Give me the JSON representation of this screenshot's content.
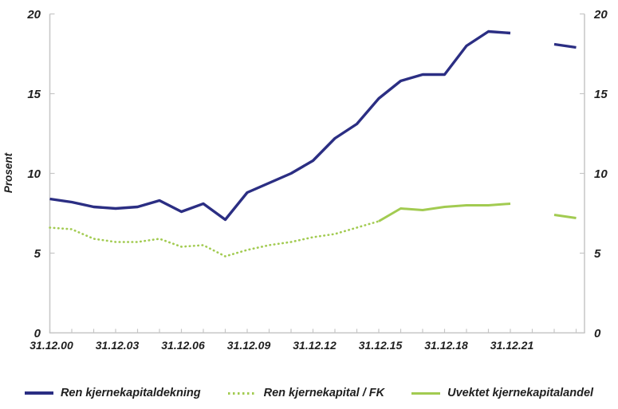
{
  "chart_data": {
    "type": "line",
    "title": "",
    "ylabel": "Prosent",
    "xlabel": "",
    "ylim": [
      0,
      20
    ],
    "yticks": [
      0,
      5,
      10,
      15,
      20
    ],
    "y_axis_sides": [
      "left",
      "right"
    ],
    "x_range_years": [
      2000,
      2024
    ],
    "x_tick_interval_years": 1,
    "grid": false,
    "legend_position": "bottom",
    "x_tick_labels": [
      {
        "year": 2000,
        "text": "31.12.00"
      },
      {
        "year": 2003,
        "text": "31.12.03"
      },
      {
        "year": 2006,
        "text": "31.12.06"
      },
      {
        "year": 2009,
        "text": "31.12.09"
      },
      {
        "year": 2012,
        "text": "31.12.12"
      },
      {
        "year": 2015,
        "text": "31.12.15"
      },
      {
        "year": 2018,
        "text": "31.12.18"
      },
      {
        "year": 2021,
        "text": "31.12.21"
      }
    ],
    "series": [
      {
        "name": "Ren kjernekapitaldekning",
        "color": "#2b2e83",
        "line_style": "solid",
        "line_width": 3.4,
        "segments": [
          {
            "years": [
              2000,
              2001,
              2002,
              2003,
              2004,
              2005,
              2006,
              2007,
              2008,
              2009,
              2010,
              2011,
              2012,
              2013,
              2014,
              2015,
              2016,
              2017,
              2018,
              2019,
              2020,
              2021
            ],
            "values": [
              8.4,
              8.2,
              7.9,
              7.8,
              7.9,
              8.3,
              7.6,
              8.1,
              7.1,
              8.8,
              9.4,
              10.0,
              10.8,
              12.2,
              13.1,
              14.7,
              15.8,
              16.2,
              16.2,
              18.0,
              18.9,
              18.8
            ]
          },
          {
            "years": [
              2023,
              2024
            ],
            "values": [
              18.1,
              17.9
            ]
          }
        ]
      },
      {
        "name": "Ren kjernekapital / FK",
        "color": "#a2cb51",
        "line_style": "dotted",
        "line_width": 2.6,
        "segments": [
          {
            "years": [
              2000,
              2001,
              2002,
              2003,
              2004,
              2005,
              2006,
              2007,
              2008,
              2009,
              2010,
              2011,
              2012,
              2013,
              2014,
              2015
            ],
            "values": [
              6.6,
              6.5,
              5.9,
              5.7,
              5.7,
              5.9,
              5.4,
              5.5,
              4.8,
              5.2,
              5.5,
              5.7,
              6.0,
              6.2,
              6.6,
              7.0
            ]
          }
        ]
      },
      {
        "name": "Uvektet kjernekapitalandel",
        "color": "#a2cb51",
        "line_style": "solid",
        "line_width": 3,
        "segments": [
          {
            "years": [
              2015,
              2016,
              2017,
              2018,
              2019,
              2020,
              2021
            ],
            "values": [
              7.0,
              7.8,
              7.7,
              7.9,
              8.0,
              8.0,
              8.1
            ]
          },
          {
            "years": [
              2023,
              2024
            ],
            "values": [
              7.4,
              7.2
            ]
          }
        ]
      }
    ],
    "colors": {
      "axis": "#c6c6c6",
      "tick": "#c6c6c6",
      "label_text": "#1f1f1f",
      "navy": "#2b2e83",
      "green": "#a2cb51"
    }
  }
}
